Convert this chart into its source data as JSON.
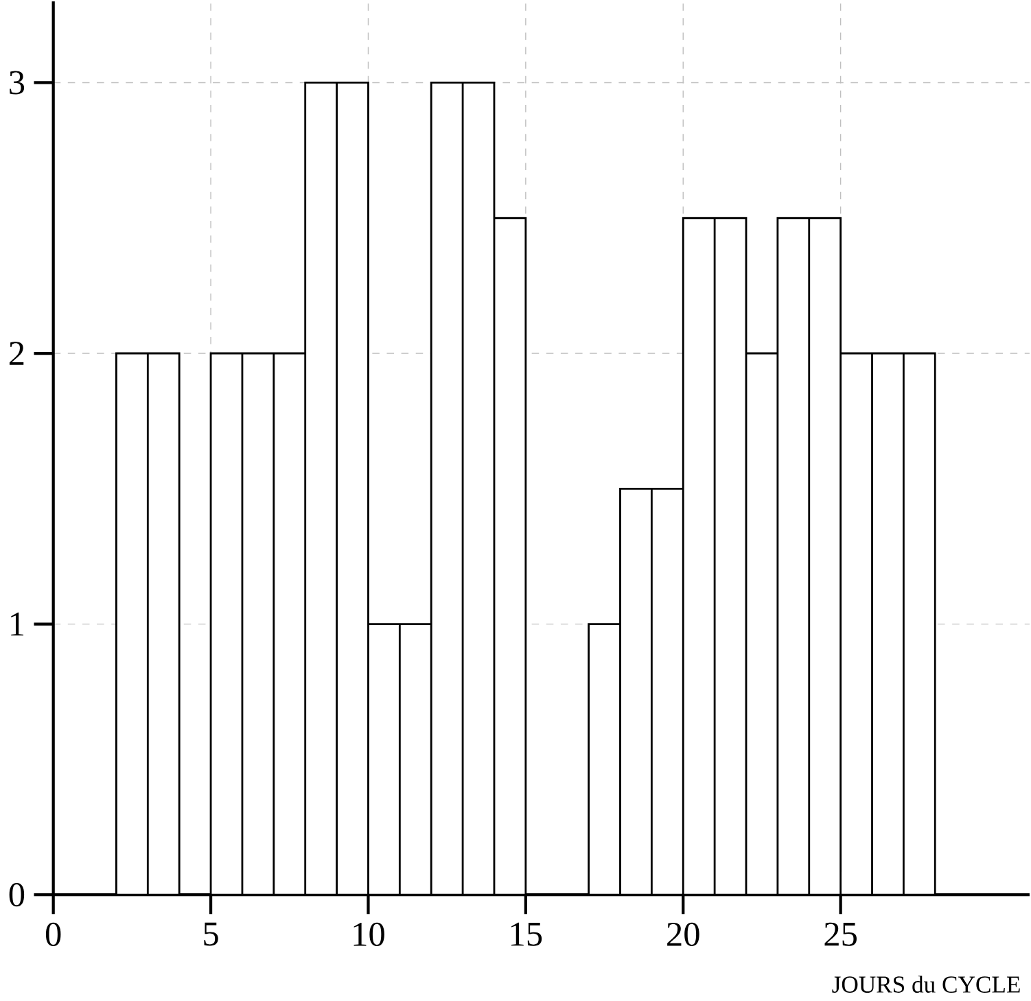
{
  "chart_data": {
    "type": "histogram",
    "xlabel": "JOURS du CYCLE",
    "bins": [
      0,
      1,
      2,
      3,
      4,
      5,
      6,
      7,
      8,
      9,
      10,
      11,
      12,
      13,
      14,
      15,
      16,
      17,
      18,
      19,
      20,
      21,
      22,
      23,
      24,
      25,
      26,
      27,
      28
    ],
    "values": [
      0,
      0,
      2,
      2,
      0,
      2,
      2,
      2,
      3,
      3,
      1,
      1,
      3,
      3,
      2.5,
      0,
      0,
      1,
      1.5,
      1.5,
      2.5,
      2.5,
      2,
      2.5,
      2.5,
      2,
      2,
      2
    ],
    "color": "#ffffff",
    "xlim": [
      0,
      31
    ],
    "ylim": [
      0,
      3.3
    ],
    "xticks": [
      0,
      5,
      10,
      15,
      20,
      25
    ],
    "yticks": [
      0,
      1,
      2,
      3
    ],
    "grid": true
  }
}
